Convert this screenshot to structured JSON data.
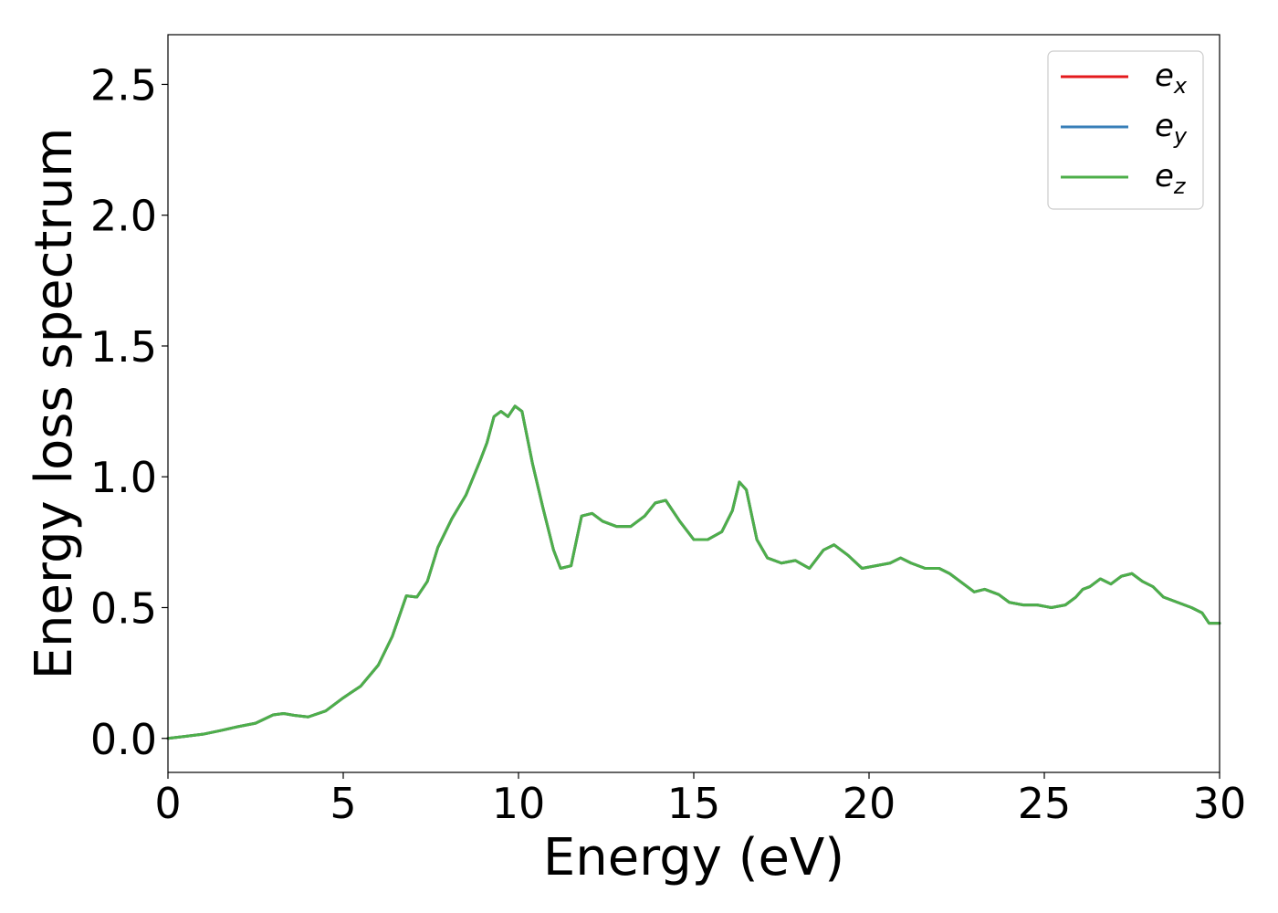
{
  "chart_data": {
    "type": "line",
    "xlabel": "Energy (eV)",
    "ylabel": "Energy loss spectrum",
    "xlim": [
      0,
      30
    ],
    "ylim": [
      -0.13,
      2.69
    ],
    "xticks": [
      0,
      5,
      10,
      15,
      20,
      25,
      30
    ],
    "xtick_labels": [
      "0",
      "5",
      "10",
      "15",
      "20",
      "25",
      "30"
    ],
    "yticks": [
      0.0,
      0.5,
      1.0,
      1.5,
      2.0,
      2.5
    ],
    "ytick_labels": [
      "0.0",
      "0.5",
      "1.0",
      "1.5",
      "2.0",
      "2.5"
    ],
    "grid": false,
    "legend_position": "top-right",
    "x": [
      0,
      0.5,
      1,
      1.5,
      2,
      2.5,
      3,
      3.3,
      3.6,
      4,
      4.5,
      5,
      5.5,
      6,
      6.4,
      6.8,
      7.1,
      7.4,
      7.7,
      8.1,
      8.5,
      8.9,
      9.1,
      9.3,
      9.5,
      9.7,
      9.9,
      10.1,
      10.4,
      10.7,
      11.0,
      11.2,
      11.5,
      11.8,
      12.1,
      12.4,
      12.8,
      13.2,
      13.6,
      13.9,
      14.2,
      14.6,
      15.0,
      15.4,
      15.8,
      16.1,
      16.3,
      16.5,
      16.8,
      17.1,
      17.5,
      17.9,
      18.3,
      18.7,
      19.0,
      19.4,
      19.8,
      20.2,
      20.6,
      20.9,
      21.2,
      21.6,
      22.0,
      22.3,
      22.7,
      23.0,
      23.3,
      23.7,
      24.0,
      24.4,
      24.8,
      25.2,
      25.6,
      25.9,
      26.1,
      26.3,
      26.6,
      26.9,
      27.2,
      27.5,
      27.8,
      28.1,
      28.4,
      28.8,
      29.2,
      29.5,
      29.7,
      30.0
    ],
    "series": [
      {
        "name": "e_x",
        "label_base": "e",
        "label_sub": "x",
        "color": "#e41a1c",
        "values": [
          0.0,
          0.008,
          0.016,
          0.03,
          0.045,
          0.058,
          0.09,
          0.095,
          0.088,
          0.082,
          0.105,
          0.155,
          0.2,
          0.28,
          0.39,
          0.545,
          0.54,
          0.6,
          0.73,
          0.84,
          0.93,
          1.06,
          1.13,
          1.23,
          1.25,
          1.23,
          1.27,
          1.25,
          1.05,
          0.88,
          0.72,
          0.65,
          0.66,
          0.85,
          0.86,
          0.83,
          0.81,
          0.81,
          0.85,
          0.9,
          0.91,
          0.83,
          0.76,
          0.76,
          0.79,
          0.87,
          0.98,
          0.95,
          0.76,
          0.69,
          0.67,
          0.68,
          0.65,
          0.72,
          0.74,
          0.7,
          0.65,
          0.66,
          0.67,
          0.69,
          0.67,
          0.65,
          0.65,
          0.63,
          0.59,
          0.56,
          0.57,
          0.55,
          0.52,
          0.51,
          0.51,
          0.5,
          0.51,
          0.54,
          0.57,
          0.58,
          0.61,
          0.59,
          0.62,
          0.63,
          0.6,
          0.58,
          0.54,
          0.52,
          0.5,
          0.48,
          0.44,
          0.44
        ]
      },
      {
        "name": "e_y",
        "label_base": "e",
        "label_sub": "y",
        "color": "#377eb8",
        "values": [
          0.0,
          0.008,
          0.016,
          0.03,
          0.045,
          0.058,
          0.09,
          0.095,
          0.088,
          0.082,
          0.105,
          0.155,
          0.2,
          0.28,
          0.39,
          0.545,
          0.54,
          0.6,
          0.73,
          0.84,
          0.93,
          1.06,
          1.13,
          1.23,
          1.25,
          1.23,
          1.27,
          1.25,
          1.05,
          0.88,
          0.72,
          0.65,
          0.66,
          0.85,
          0.86,
          0.83,
          0.81,
          0.81,
          0.85,
          0.9,
          0.91,
          0.83,
          0.76,
          0.76,
          0.79,
          0.87,
          0.98,
          0.95,
          0.76,
          0.69,
          0.67,
          0.68,
          0.65,
          0.72,
          0.74,
          0.7,
          0.65,
          0.66,
          0.67,
          0.69,
          0.67,
          0.65,
          0.65,
          0.63,
          0.59,
          0.56,
          0.57,
          0.55,
          0.52,
          0.51,
          0.51,
          0.5,
          0.51,
          0.54,
          0.57,
          0.58,
          0.61,
          0.59,
          0.62,
          0.63,
          0.6,
          0.58,
          0.54,
          0.52,
          0.5,
          0.48,
          0.44,
          0.44
        ]
      },
      {
        "name": "e_z",
        "label_base": "e",
        "label_sub": "z",
        "color": "#4daf4a",
        "values": [
          0.0,
          0.008,
          0.016,
          0.03,
          0.045,
          0.058,
          0.09,
          0.095,
          0.088,
          0.082,
          0.105,
          0.155,
          0.2,
          0.28,
          0.39,
          0.545,
          0.54,
          0.6,
          0.73,
          0.84,
          0.93,
          1.06,
          1.13,
          1.23,
          1.25,
          1.23,
          1.27,
          1.25,
          1.05,
          0.88,
          0.72,
          0.65,
          0.66,
          0.85,
          0.86,
          0.83,
          0.81,
          0.81,
          0.85,
          0.9,
          0.91,
          0.83,
          0.76,
          0.76,
          0.79,
          0.87,
          0.98,
          0.95,
          0.76,
          0.69,
          0.67,
          0.68,
          0.65,
          0.72,
          0.74,
          0.7,
          0.65,
          0.66,
          0.67,
          0.69,
          0.67,
          0.65,
          0.65,
          0.63,
          0.59,
          0.56,
          0.57,
          0.55,
          0.52,
          0.51,
          0.51,
          0.5,
          0.51,
          0.54,
          0.57,
          0.58,
          0.61,
          0.59,
          0.62,
          0.63,
          0.6,
          0.58,
          0.54,
          0.52,
          0.5,
          0.48,
          0.44,
          0.44
        ]
      }
    ]
  }
}
